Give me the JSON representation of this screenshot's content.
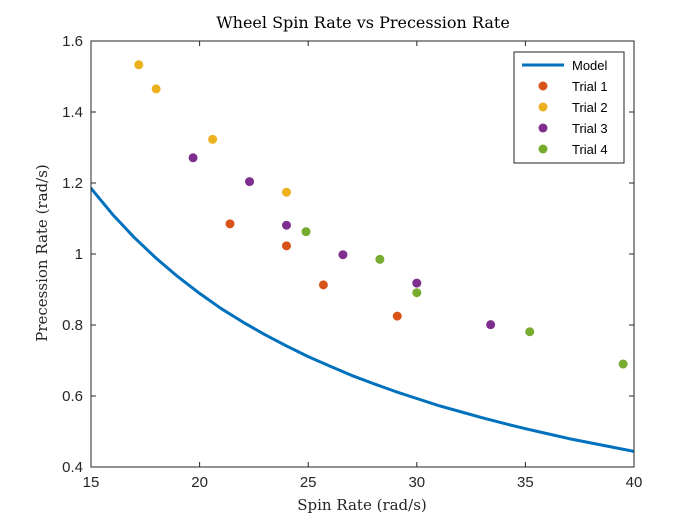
{
  "chart_data": {
    "type": "scatter",
    "title": "Wheel Spin Rate vs Precession Rate",
    "xlabel": "Spin Rate (rad/s)",
    "ylabel": "Precession Rate (rad/s)",
    "xlim": [
      15,
      40
    ],
    "ylim": [
      0.4,
      1.6
    ],
    "xticks": [
      15,
      20,
      25,
      30,
      35,
      40
    ],
    "xtick_labels": [
      "15",
      "20",
      "25",
      "30",
      "35",
      "40"
    ],
    "yticks": [
      0.4,
      0.6,
      0.8,
      1.0,
      1.2,
      1.4,
      1.6
    ],
    "ytick_labels": [
      "0.4",
      "0.6",
      "0.8",
      "1",
      "1.2",
      "1.4",
      "1.6"
    ],
    "grid": false,
    "legend_position": "top-right",
    "series": [
      {
        "name": "Model",
        "kind": "line",
        "color": "#0072BD",
        "x": [
          15,
          16,
          17,
          18,
          19,
          20,
          21,
          22,
          23,
          24,
          25,
          26,
          27,
          28,
          29,
          30,
          31,
          32,
          33,
          34,
          35,
          36,
          37,
          38,
          39,
          40
        ],
        "y": [
          1.185,
          1.111,
          1.046,
          0.988,
          0.936,
          0.889,
          0.846,
          0.808,
          0.773,
          0.741,
          0.711,
          0.684,
          0.658,
          0.635,
          0.613,
          0.593,
          0.573,
          0.556,
          0.539,
          0.523,
          0.508,
          0.494,
          0.48,
          0.468,
          0.456,
          0.444
        ]
      },
      {
        "name": "Trial 1",
        "kind": "scatter",
        "color": "#D95319",
        "x": [
          21.4,
          24.0,
          25.7,
          29.1
        ],
        "y": [
          1.085,
          1.023,
          0.913,
          0.825
        ]
      },
      {
        "name": "Trial 2",
        "kind": "scatter",
        "color": "#EDB120",
        "x": [
          17.2,
          18.0,
          20.6,
          24.0
        ],
        "y": [
          1.533,
          1.465,
          1.323,
          1.174
        ]
      },
      {
        "name": "Trial 3",
        "kind": "scatter",
        "color": "#7E2F8E",
        "x": [
          19.7,
          22.3,
          24.0,
          26.6,
          30.0,
          33.4
        ],
        "y": [
          1.271,
          1.204,
          1.081,
          0.998,
          0.918,
          0.801
        ]
      },
      {
        "name": "Trial 4",
        "kind": "scatter",
        "color": "#77AC30",
        "x": [
          24.9,
          28.3,
          30.0,
          35.2,
          39.5
        ],
        "y": [
          1.063,
          0.985,
          0.891,
          0.781,
          0.69
        ]
      }
    ]
  }
}
